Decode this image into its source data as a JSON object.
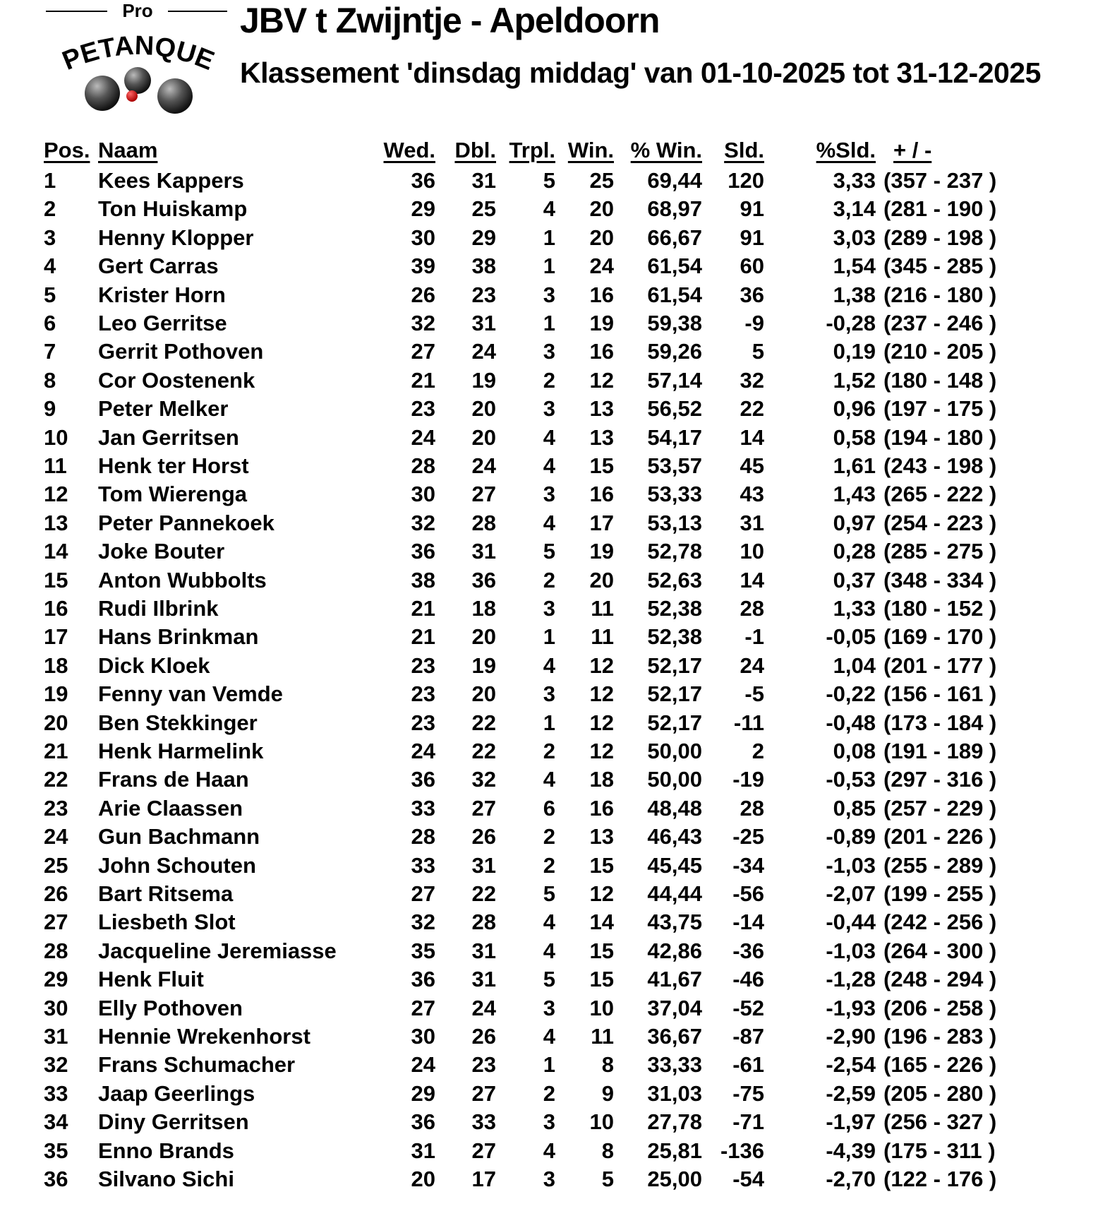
{
  "logo": {
    "top_text": "Pro",
    "arc_text": "PETANQUE"
  },
  "header": {
    "title": "JBV t Zwijntje - Apeldoorn",
    "subtitle": "Klassement 'dinsdag middag' van 01-10-2025 tot 31-12-2025"
  },
  "table": {
    "columns": [
      "Pos.",
      "Naam",
      "Wed.",
      "Dbl.",
      "Trpl.",
      "Win.",
      "% Win.",
      "Sld.",
      "%Sld.",
      "+ / -"
    ],
    "rows": [
      [
        "1",
        "Kees Kappers",
        "36",
        "31",
        "5",
        "25",
        "69,44",
        "120",
        "3,33",
        "(357 - 237 )"
      ],
      [
        "2",
        "Ton Huiskamp",
        "29",
        "25",
        "4",
        "20",
        "68,97",
        "91",
        "3,14",
        "(281 - 190 )"
      ],
      [
        "3",
        "Henny Klopper",
        "30",
        "29",
        "1",
        "20",
        "66,67",
        "91",
        "3,03",
        "(289 - 198 )"
      ],
      [
        "4",
        "Gert Carras",
        "39",
        "38",
        "1",
        "24",
        "61,54",
        "60",
        "1,54",
        "(345 - 285 )"
      ],
      [
        "5",
        "Krister Horn",
        "26",
        "23",
        "3",
        "16",
        "61,54",
        "36",
        "1,38",
        "(216 - 180 )"
      ],
      [
        "6",
        "Leo Gerritse",
        "32",
        "31",
        "1",
        "19",
        "59,38",
        "-9",
        "-0,28",
        "(237 - 246 )"
      ],
      [
        "7",
        "Gerrit Pothoven",
        "27",
        "24",
        "3",
        "16",
        "59,26",
        "5",
        "0,19",
        "(210 - 205 )"
      ],
      [
        "8",
        "Cor Oostenenk",
        "21",
        "19",
        "2",
        "12",
        "57,14",
        "32",
        "1,52",
        "(180 - 148 )"
      ],
      [
        "9",
        "Peter Melker",
        "23",
        "20",
        "3",
        "13",
        "56,52",
        "22",
        "0,96",
        "(197 - 175 )"
      ],
      [
        "10",
        "Jan Gerritsen",
        "24",
        "20",
        "4",
        "13",
        "54,17",
        "14",
        "0,58",
        "(194 - 180 )"
      ],
      [
        "11",
        "Henk ter Horst",
        "28",
        "24",
        "4",
        "15",
        "53,57",
        "45",
        "1,61",
        "(243 - 198 )"
      ],
      [
        "12",
        "Tom Wierenga",
        "30",
        "27",
        "3",
        "16",
        "53,33",
        "43",
        "1,43",
        "(265 - 222 )"
      ],
      [
        "13",
        "Peter Pannekoek",
        "32",
        "28",
        "4",
        "17",
        "53,13",
        "31",
        "0,97",
        "(254 - 223 )"
      ],
      [
        "14",
        "Joke Bouter",
        "36",
        "31",
        "5",
        "19",
        "52,78",
        "10",
        "0,28",
        "(285 - 275 )"
      ],
      [
        "15",
        "Anton Wubbolts",
        "38",
        "36",
        "2",
        "20",
        "52,63",
        "14",
        "0,37",
        "(348 - 334 )"
      ],
      [
        "16",
        "Rudi Ilbrink",
        "21",
        "18",
        "3",
        "11",
        "52,38",
        "28",
        "1,33",
        "(180 - 152 )"
      ],
      [
        "17",
        "Hans Brinkman",
        "21",
        "20",
        "1",
        "11",
        "52,38",
        "-1",
        "-0,05",
        "(169 - 170 )"
      ],
      [
        "18",
        "Dick Kloek",
        "23",
        "19",
        "4",
        "12",
        "52,17",
        "24",
        "1,04",
        "(201 - 177 )"
      ],
      [
        "19",
        "Fenny van Vemde",
        "23",
        "20",
        "3",
        "12",
        "52,17",
        "-5",
        "-0,22",
        "(156 - 161 )"
      ],
      [
        "20",
        "Ben Stekkinger",
        "23",
        "22",
        "1",
        "12",
        "52,17",
        "-11",
        "-0,48",
        "(173 - 184 )"
      ],
      [
        "21",
        "Henk Harmelink",
        "24",
        "22",
        "2",
        "12",
        "50,00",
        "2",
        "0,08",
        "(191 - 189 )"
      ],
      [
        "22",
        "Frans de Haan",
        "36",
        "32",
        "4",
        "18",
        "50,00",
        "-19",
        "-0,53",
        "(297 - 316 )"
      ],
      [
        "23",
        "Arie Claassen",
        "33",
        "27",
        "6",
        "16",
        "48,48",
        "28",
        "0,85",
        "(257 - 229 )"
      ],
      [
        "24",
        "Gun Bachmann",
        "28",
        "26",
        "2",
        "13",
        "46,43",
        "-25",
        "-0,89",
        "(201 - 226 )"
      ],
      [
        "25",
        "John Schouten",
        "33",
        "31",
        "2",
        "15",
        "45,45",
        "-34",
        "-1,03",
        "(255 - 289 )"
      ],
      [
        "26",
        "Bart Ritsema",
        "27",
        "22",
        "5",
        "12",
        "44,44",
        "-56",
        "-2,07",
        "(199 - 255 )"
      ],
      [
        "27",
        "Liesbeth Slot",
        "32",
        "28",
        "4",
        "14",
        "43,75",
        "-14",
        "-0,44",
        "(242 - 256 )"
      ],
      [
        "28",
        "Jacqueline Jeremiasse",
        "35",
        "31",
        "4",
        "15",
        "42,86",
        "-36",
        "-1,03",
        "(264 - 300 )"
      ],
      [
        "29",
        "Henk Fluit",
        "36",
        "31",
        "5",
        "15",
        "41,67",
        "-46",
        "-1,28",
        "(248 - 294 )"
      ],
      [
        "30",
        "Elly Pothoven",
        "27",
        "24",
        "3",
        "10",
        "37,04",
        "-52",
        "-1,93",
        "(206 - 258 )"
      ],
      [
        "31",
        "Hennie Wrekenhorst",
        "30",
        "26",
        "4",
        "11",
        "36,67",
        "-87",
        "-2,90",
        "(196 - 283 )"
      ],
      [
        "32",
        "Frans Schumacher",
        "24",
        "23",
        "1",
        "8",
        "33,33",
        "-61",
        "-2,54",
        "(165 - 226 )"
      ],
      [
        "33",
        "Jaap Geerlings",
        "29",
        "27",
        "2",
        "9",
        "31,03",
        "-75",
        "-2,59",
        "(205 - 280 )"
      ],
      [
        "34",
        "Diny Gerritsen",
        "36",
        "33",
        "3",
        "10",
        "27,78",
        "-71",
        "-1,97",
        "(256 - 327 )"
      ],
      [
        "35",
        "Enno Brands",
        "31",
        "27",
        "4",
        "8",
        "25,81",
        "-136",
        "-4,39",
        "(175 - 311 )"
      ],
      [
        "36",
        "Silvano Sichi",
        "20",
        "17",
        "3",
        "5",
        "25,00",
        "-54",
        "-2,70",
        "(122 - 176 )"
      ]
    ]
  }
}
